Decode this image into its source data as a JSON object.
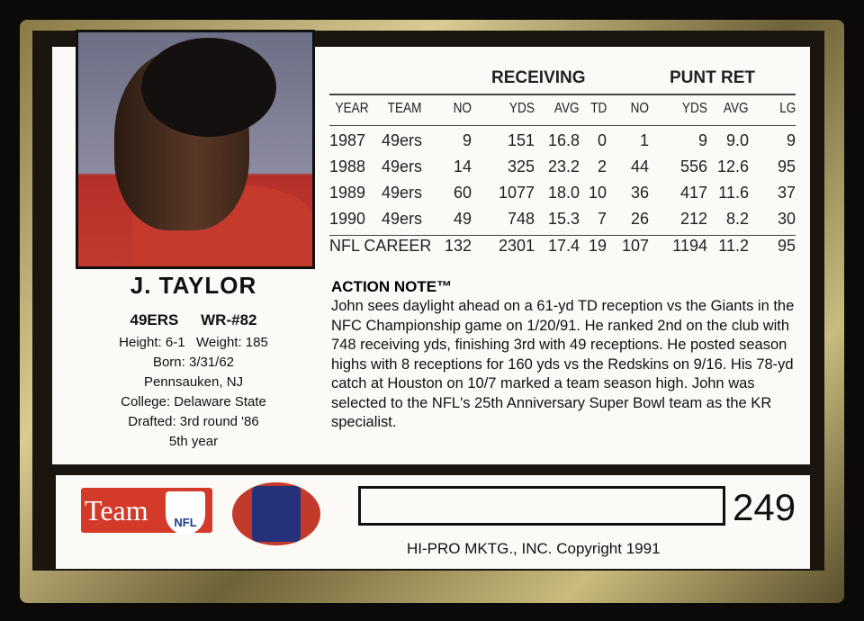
{
  "player": {
    "name": "J. TAYLOR",
    "team": "49ERS",
    "position": "WR-#82",
    "height": "Height: 6-1",
    "weight": "Weight:  185",
    "born": "Born:  3/31/62",
    "hometown": "Pennsauken, NJ",
    "college": "College:  Delaware State",
    "drafted": "Drafted:  3rd round '86",
    "experience": "5th year"
  },
  "stats": {
    "groups": [
      "RECEIVING",
      "PUNT RET"
    ],
    "headers": [
      "YEAR",
      "TEAM",
      "NO",
      "YDS",
      "AVG",
      "TD",
      "NO",
      "YDS",
      "AVG",
      "LG"
    ],
    "rows": [
      [
        "1987",
        "49ers",
        "9",
        "151",
        "16.8",
        "0",
        "1",
        "9",
        "9.0",
        "9"
      ],
      [
        "1988",
        "49ers",
        "14",
        "325",
        "23.2",
        "2",
        "44",
        "556",
        "12.6",
        "95"
      ],
      [
        "1989",
        "49ers",
        "60",
        "1077",
        "18.0",
        "10",
        "36",
        "417",
        "11.6",
        "37"
      ],
      [
        "1990",
        "49ers",
        "49",
        "748",
        "15.3",
        "7",
        "26",
        "212",
        "8.2",
        "30"
      ]
    ],
    "career": [
      "NFL CAREER",
      "132",
      "2301",
      "17.4",
      "19",
      "107",
      "1194",
      "11.2",
      "95"
    ]
  },
  "action_note": {
    "title": "ACTION NOTE™",
    "text": "John sees daylight ahead on a 61-yd TD reception vs the Giants in the NFC Championship game on 1/20/91. He ranked 2nd on the club with 748 receiving yds, finishing 3rd with 49 receptions. He posted season highs with 8 receptions for 160 yds vs the Redskins on 9/16. His 78-yd catch at Houston on 10/7 marked a team season high. John was selected to the NFL's 25th Anniversary Super Bowl team as the KR specialist."
  },
  "footer": {
    "team_logo": "Team",
    "nfl_logo": "NFL",
    "nflpa_logo": "NATIONAL FOOTBALL LEAGUE PLAYERS ASSOCIATION",
    "card_number": "249",
    "copyright": "HI-PRO MKTG., INC. Copyright 1991"
  }
}
